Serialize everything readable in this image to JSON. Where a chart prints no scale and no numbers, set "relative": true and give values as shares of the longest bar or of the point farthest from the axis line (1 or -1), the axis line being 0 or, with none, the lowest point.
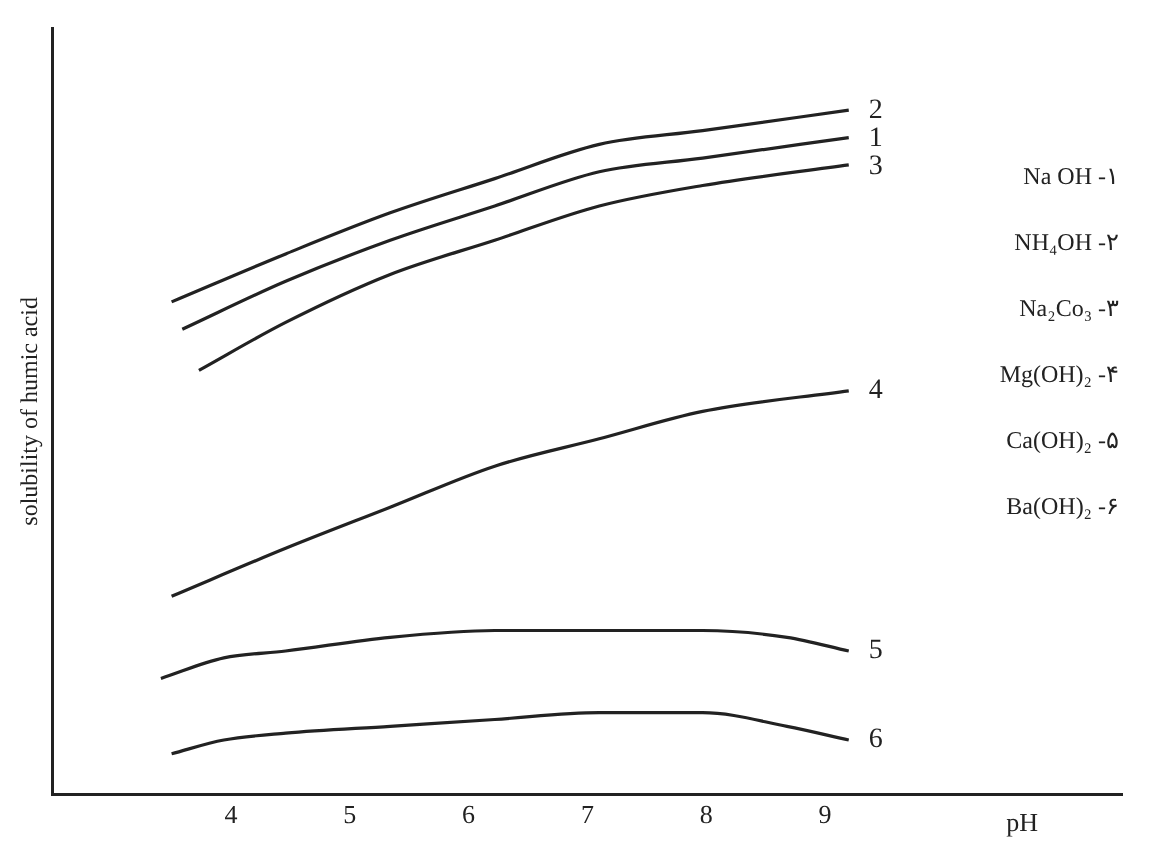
{
  "chart_data": {
    "type": "line",
    "relative": true,
    "xlabel": "pH",
    "ylabel": "solubility of humic acid",
    "xlim": [
      2.5,
      11.5
    ],
    "xticks": [
      4,
      5,
      6,
      7,
      8,
      9
    ],
    "grid": false,
    "legend": false,
    "marker": "none",
    "line_style": "solid",
    "annotations": [
      "Na OH -۱",
      "NH₄OH -۲",
      "Na₂Co₃ -۳",
      "Mg(OH)₂ -۴",
      "Ca(OH)₂ -۵",
      "Ba(OH)₂ -۶"
    ],
    "series": [
      {
        "name": "2",
        "color": "#222222",
        "x": [
          3.5,
          4.46,
          5.34,
          6.22,
          7.1,
          7.97,
          9.2
        ],
        "values": [
          0.72,
          0.79,
          0.85,
          0.9,
          0.95,
          0.97,
          1
        ]
      },
      {
        "name": "1",
        "color": "#222222",
        "x": [
          3.59,
          4.46,
          5.34,
          6.22,
          7.1,
          7.97,
          9.2
        ],
        "values": [
          0.68,
          0.75,
          0.81,
          0.86,
          0.91,
          0.93,
          0.96
        ]
      },
      {
        "name": "3",
        "color": "#222222",
        "x": [
          3.73,
          4.46,
          5.34,
          6.22,
          7.1,
          7.97,
          9.2
        ],
        "values": [
          0.62,
          0.69,
          0.76,
          0.81,
          0.86,
          0.89,
          0.92
        ]
      },
      {
        "name": "4",
        "color": "#222222",
        "x": [
          3.5,
          4.46,
          5.34,
          6.22,
          7.1,
          7.97,
          9.2
        ],
        "values": [
          0.29,
          0.36,
          0.42,
          0.48,
          0.52,
          0.56,
          0.59
        ]
      },
      {
        "name": "5",
        "color": "#222222",
        "x": [
          3.41,
          3.94,
          4.46,
          5.34,
          6.22,
          7.1,
          7.97,
          8.68,
          9.2
        ],
        "values": [
          0.17,
          0.2,
          0.21,
          0.23,
          0.24,
          0.24,
          0.24,
          0.23,
          0.21
        ]
      },
      {
        "name": "6",
        "color": "#222222",
        "x": [
          3.5,
          3.94,
          4.46,
          5.34,
          6.22,
          7.1,
          7.97,
          8.68,
          9.2
        ],
        "values": [
          0.06,
          0.08,
          0.09,
          0.1,
          0.11,
          0.12,
          0.12,
          0.1,
          0.08
        ]
      }
    ]
  }
}
